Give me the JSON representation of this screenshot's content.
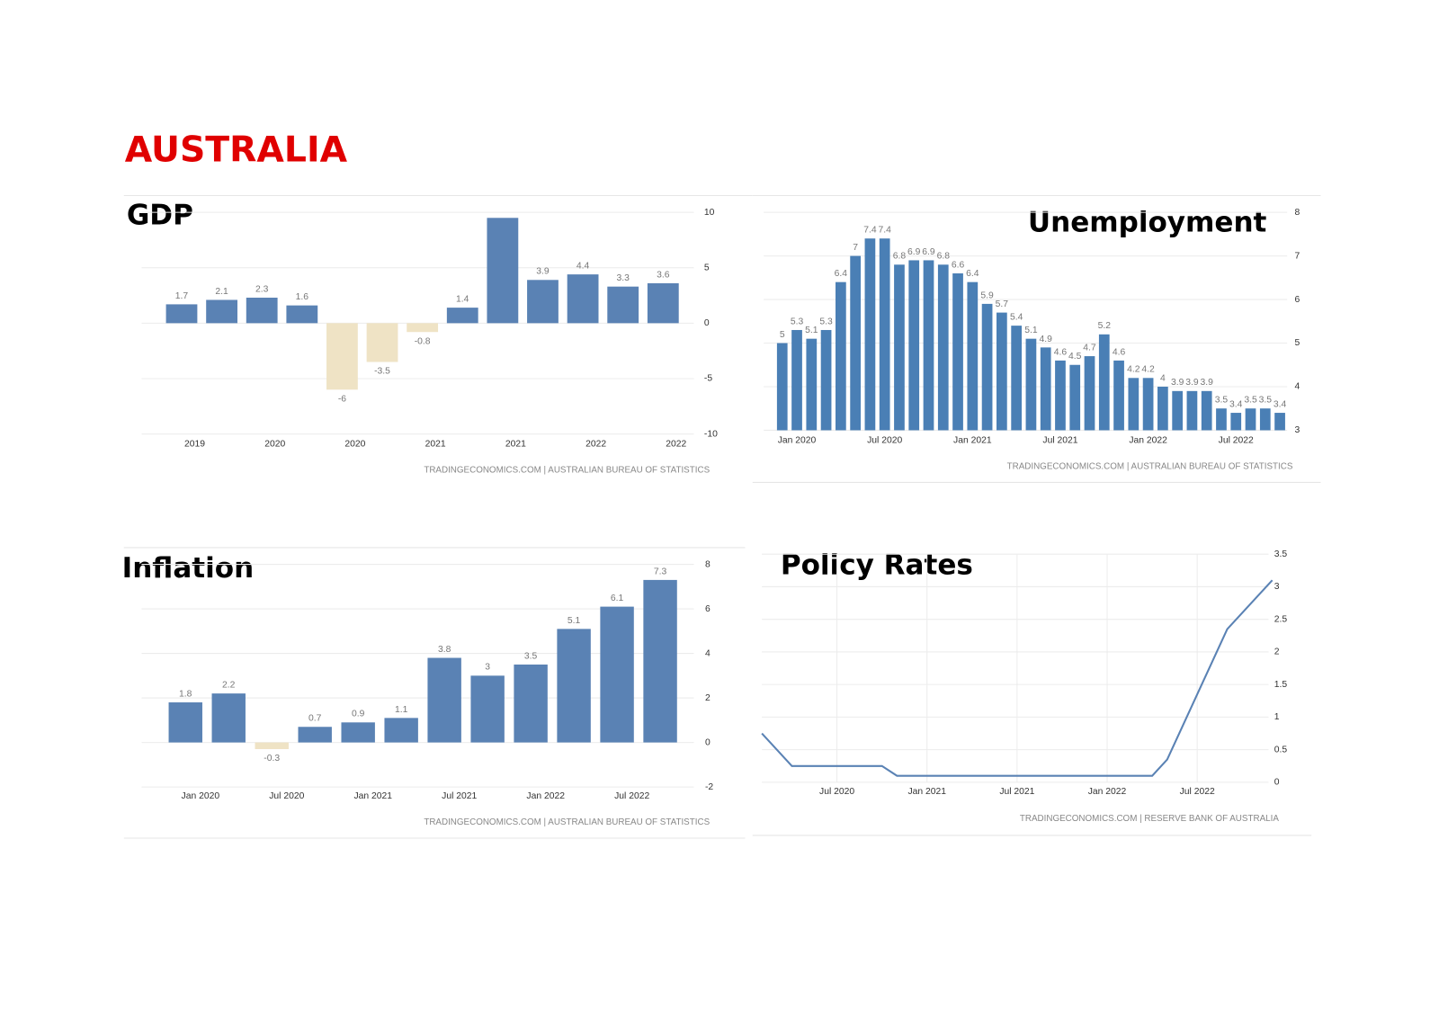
{
  "title": "AUSTRALIA",
  "chart_data": [
    {
      "type": "bar",
      "title": "GDP",
      "categories": [
        "2019",
        null,
        "2020",
        null,
        "2020",
        null,
        "2021",
        null,
        "2021",
        null,
        "2022",
        null,
        "2022"
      ],
      "values": [
        1.7,
        2.1,
        2.3,
        1.6,
        -6,
        -3.5,
        -0.8,
        1.4,
        9.5,
        3.9,
        4.4,
        3.3,
        3.6
      ],
      "value_labels": [
        "1.7",
        "2.1",
        "2.3",
        "1.6",
        "-6",
        "-3.5",
        "-0.8",
        "1.4",
        null,
        "3.9",
        "4.4",
        "3.3",
        "3.6"
      ],
      "color": "#5a82b4",
      "negative_color": "#efe3c5",
      "ylim": [
        -10,
        10
      ],
      "yticks": [
        -10,
        -5,
        0,
        5,
        10
      ],
      "grid": true,
      "source": "TRADINGECONOMICS.COM | AUSTRALIAN BUREAU OF STATISTICS"
    },
    {
      "type": "bar",
      "title": "Unemployment",
      "categories": [
        null,
        "Jan 2020",
        null,
        null,
        null,
        null,
        null,
        "Jul 2020",
        null,
        null,
        null,
        null,
        null,
        "Jan 2021",
        null,
        null,
        null,
        null,
        null,
        "Jul 2021",
        null,
        null,
        null,
        null,
        null,
        "Jan 2022",
        null,
        null,
        null,
        null,
        null,
        "Jul 2022",
        null,
        null,
        null
      ],
      "values": [
        5,
        5.3,
        5.1,
        5.3,
        6.4,
        7,
        7.4,
        7.4,
        6.8,
        6.9,
        6.9,
        6.8,
        6.6,
        6.4,
        5.9,
        5.7,
        5.4,
        5.1,
        4.9,
        4.6,
        4.5,
        4.7,
        5.2,
        4.6,
        4.2,
        4.2,
        4,
        3.9,
        3.9,
        3.9,
        3.5,
        3.4,
        3.5,
        3.5,
        3.4
      ],
      "color": "#4a7fb5",
      "ylim": [
        3,
        8
      ],
      "yticks": [
        3,
        4,
        5,
        6,
        7,
        8
      ],
      "grid": true,
      "source": "TRADINGECONOMICS.COM | AUSTRALIAN BUREAU OF STATISTICS"
    },
    {
      "type": "bar",
      "title": "Inflation",
      "categories": [
        "Jan 2020",
        null,
        "Jul 2020",
        null,
        "Jan 2021",
        null,
        "Jul 2021",
        null,
        "Jan 2022",
        null,
        "Jul 2022",
        null
      ],
      "values": [
        1.8,
        2.2,
        -0.3,
        0.7,
        0.9,
        1.1,
        3.8,
        3,
        3.5,
        5.1,
        6.1,
        7.3
      ],
      "color": "#5a82b4",
      "negative_color": "#efe3c5",
      "ylim": [
        -2,
        8
      ],
      "yticks": [
        -2,
        0,
        2,
        4,
        6,
        8
      ],
      "grid": true,
      "source": "TRADINGECONOMICS.COM | AUSTRALIAN BUREAU OF STATISTICS"
    },
    {
      "type": "line",
      "title": "Policy Rates",
      "categories": [
        null,
        null,
        null,
        null,
        null,
        "Jul 2020",
        null,
        null,
        null,
        null,
        null,
        "Jan 2021",
        null,
        null,
        null,
        null,
        null,
        "Jul 2021",
        null,
        null,
        null,
        null,
        null,
        "Jan 2022",
        null,
        null,
        null,
        null,
        null,
        "Jul 2022",
        null,
        null,
        null,
        null,
        null
      ],
      "values": [
        0.75,
        0.5,
        0.25,
        0.25,
        0.25,
        0.25,
        0.25,
        0.25,
        0.25,
        0.1,
        0.1,
        0.1,
        0.1,
        0.1,
        0.1,
        0.1,
        0.1,
        0.1,
        0.1,
        0.1,
        0.1,
        0.1,
        0.1,
        0.1,
        0.1,
        0.1,
        0.1,
        0.35,
        0.85,
        1.35,
        1.85,
        2.35,
        2.6,
        2.85,
        3.1
      ],
      "color": "#5a82b4",
      "ylim": [
        0,
        3.5
      ],
      "yticks": [
        0,
        0.5,
        1,
        1.5,
        2,
        2.5,
        3,
        3.5
      ],
      "grid": true,
      "source": "TRADINGECONOMICS.COM | RESERVE BANK OF AUSTRALIA"
    }
  ]
}
